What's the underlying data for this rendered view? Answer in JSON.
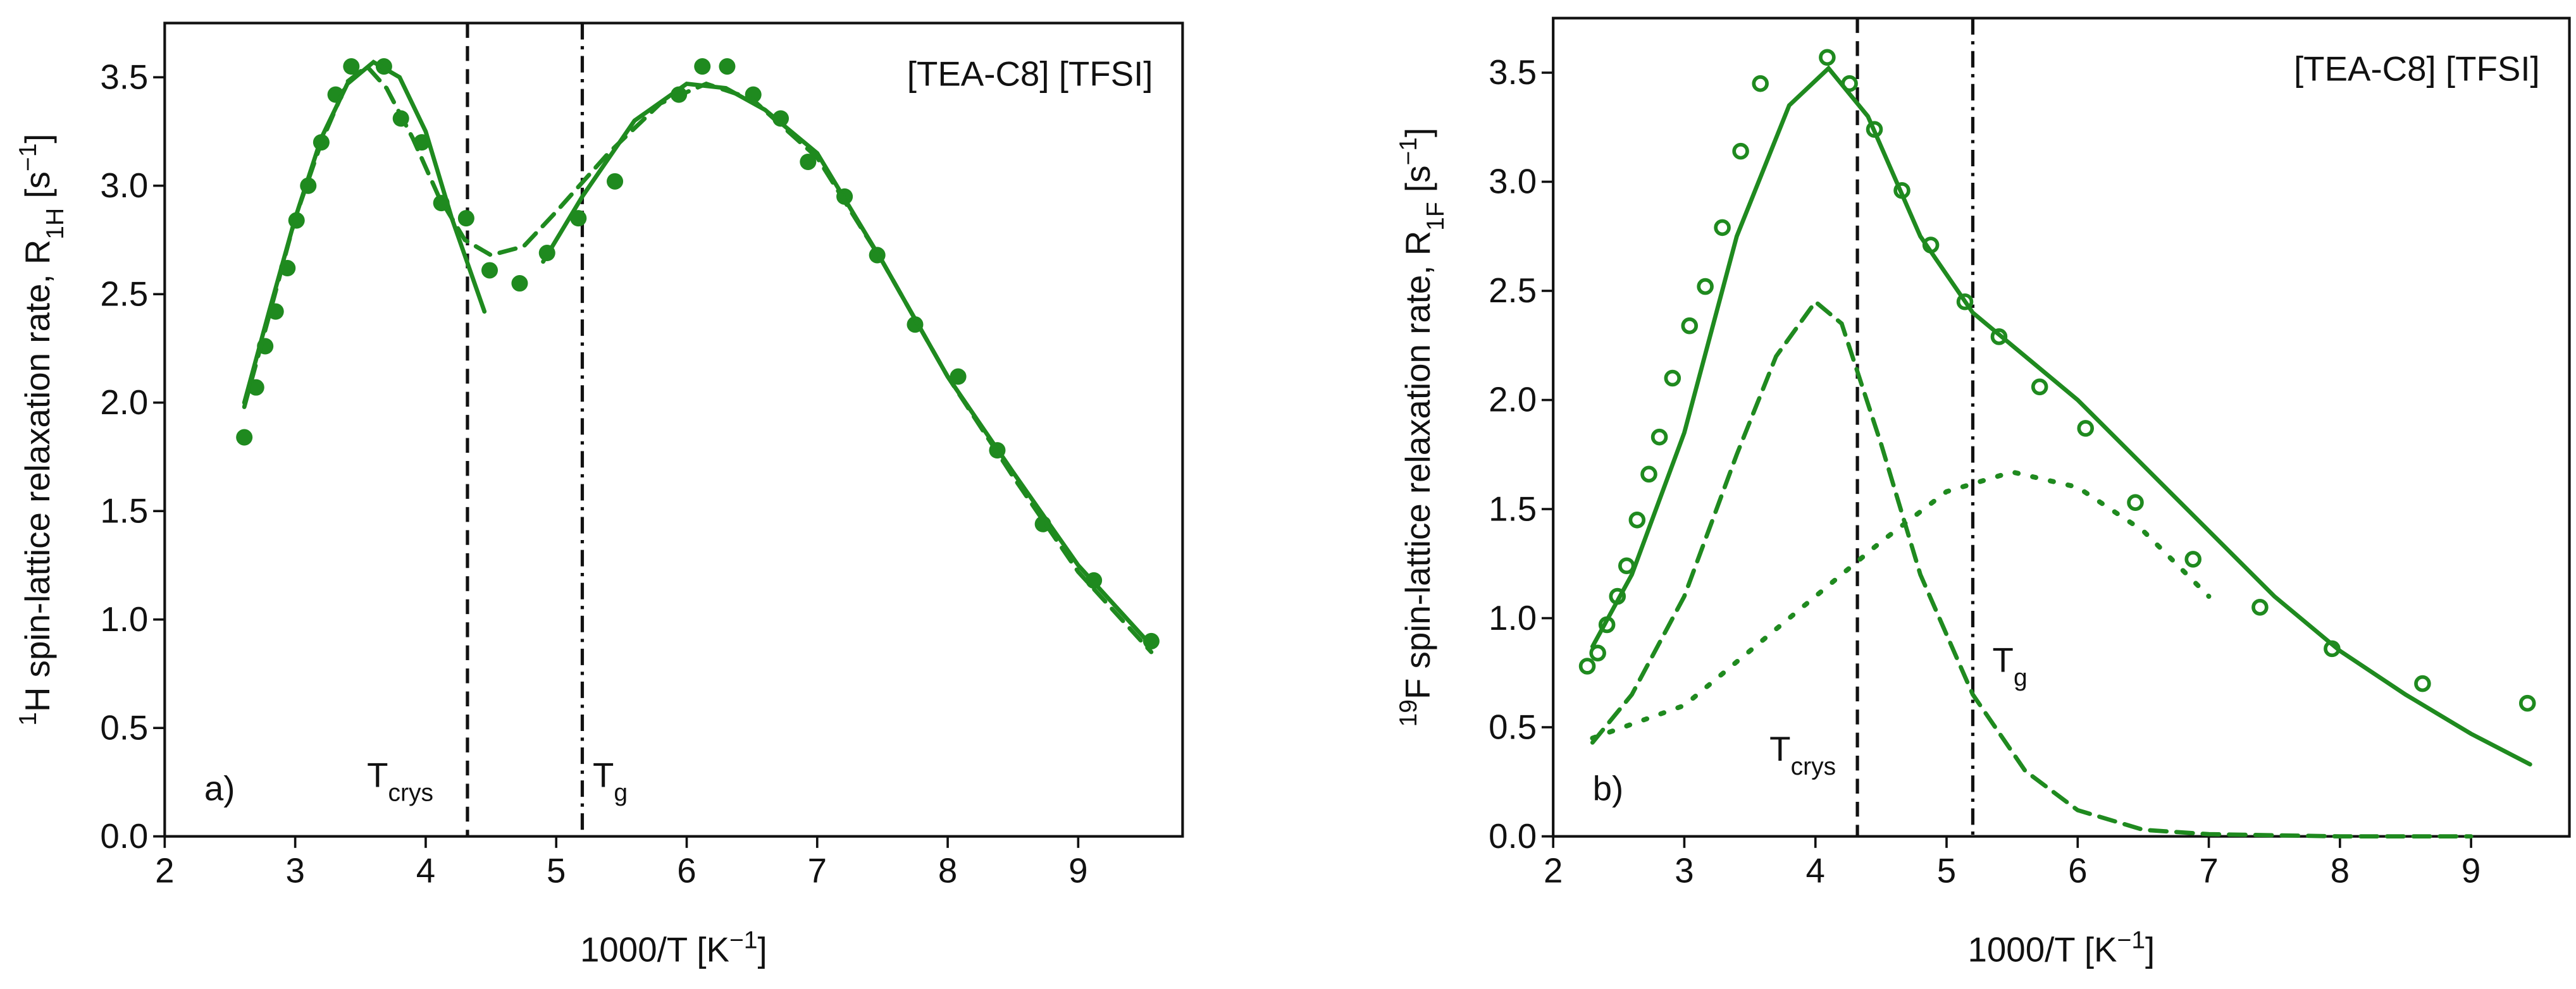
{
  "chart_data": [
    {
      "type": "scatter",
      "xlabel": [
        "1000/T [K",
        "−1",
        "]"
      ],
      "ylabel": [
        "1",
        "H spin-lattice relaxation rate, R",
        "1H",
        " [s",
        "−1",
        "]"
      ],
      "annotations": {
        "legend": "[TEA-C8] [TFSI]",
        "panel": "a)",
        "crys": [
          "T",
          "crys"
        ],
        "glass": [
          "T",
          "g"
        ]
      },
      "vlines": [
        4.32,
        5.2
      ],
      "xlim": [
        2,
        9.8
      ],
      "ylim": [
        0,
        3.75
      ],
      "xticks": [
        2,
        3,
        4,
        5,
        6,
        7,
        8,
        9
      ],
      "yticks": [
        {
          "value": 0,
          "label": "0.0"
        },
        0.5,
        {
          "value": 1,
          "label": "1.0"
        },
        1.5,
        {
          "value": 2,
          "label": "2.0"
        },
        2.5,
        {
          "value": 3,
          "label": "3.0"
        },
        3.5
      ],
      "series": [
        {
          "style": "filled",
          "color": "#1f8a1f",
          "x": [
            2.61,
            2.7,
            2.77,
            2.85,
            2.94,
            3.01,
            3.1,
            3.2,
            3.31,
            3.43,
            3.68,
            3.81,
            3.97,
            4.12,
            4.31,
            4.49,
            4.72,
            4.93,
            5.17,
            5.45,
            5.94,
            6.12,
            6.31,
            6.51,
            6.72,
            6.93,
            7.21,
            7.46,
            7.75,
            8.08,
            8.38,
            8.73,
            9.12,
            9.56
          ],
          "values": [
            1.84,
            2.07,
            2.26,
            2.42,
            2.62,
            2.84,
            3.0,
            3.2,
            3.42,
            3.55,
            3.55,
            3.31,
            3.2,
            2.92,
            2.85,
            2.61,
            2.55,
            2.69,
            2.85,
            3.02,
            3.42,
            3.55,
            3.55,
            3.42,
            3.31,
            3.11,
            2.95,
            2.68,
            2.36,
            2.12,
            1.78,
            1.44,
            1.18,
            0.9
          ]
        },
        {
          "style": "solid",
          "color": "#1f8a1f",
          "x": [
            2.61,
            2.8,
            3.0,
            3.2,
            3.4,
            3.6,
            3.8,
            4.0,
            4.2,
            4.45,
            4.7,
            4.9,
            5.2,
            5.6,
            6.0,
            6.3,
            6.6,
            7.0,
            7.5,
            8.0,
            8.5,
            9.0,
            9.56
          ],
          "values": [
            2.0,
            2.42,
            2.85,
            3.22,
            3.47,
            3.57,
            3.5,
            3.25,
            2.85,
            2.42,
            null,
            2.65,
            2.95,
            3.3,
            3.47,
            3.45,
            3.35,
            3.15,
            2.65,
            2.12,
            1.68,
            1.25,
            0.88
          ]
        },
        {
          "style": "dashed",
          "color": "#1f8a1f",
          "x": [
            2.61,
            2.8,
            3.0,
            3.2,
            3.4,
            3.55,
            3.7,
            3.9,
            4.1,
            4.3,
            4.5,
            4.75,
            5.0,
            5.4,
            5.8,
            6.15,
            6.5,
            7.0,
            7.5,
            8.0,
            8.5,
            9.0,
            9.56
          ],
          "values": [
            1.98,
            2.4,
            2.85,
            3.2,
            3.48,
            3.55,
            3.45,
            3.22,
            2.95,
            2.75,
            2.68,
            2.72,
            2.88,
            3.15,
            3.38,
            3.47,
            3.4,
            3.13,
            2.65,
            2.12,
            1.66,
            1.22,
            0.85
          ]
        }
      ]
    },
    {
      "type": "scatter",
      "xlabel": [
        "1000/T [K",
        "−1",
        "]"
      ],
      "ylabel": [
        "19",
        "F spin-lattice relaxation rate, R",
        "1F",
        " [s",
        "−1",
        "]"
      ],
      "annotations": {
        "legend": "[TEA-C8] [TFSI]",
        "panel": "b)",
        "crys": [
          "T",
          "crys"
        ],
        "glass": [
          "T",
          "g"
        ]
      },
      "vlines": [
        4.32,
        5.2
      ],
      "xlim": [
        2,
        9.75
      ],
      "ylim": [
        0,
        3.75
      ],
      "xticks": [
        2,
        3,
        4,
        5,
        6,
        7,
        8,
        9
      ],
      "yticks": [
        {
          "value": 0,
          "label": "0.0"
        },
        0.5,
        {
          "value": 1,
          "label": "1.0"
        },
        1.5,
        {
          "value": 2,
          "label": "2.0"
        },
        2.5,
        {
          "value": 3,
          "label": "3.0"
        },
        3.5
      ],
      "series": [
        {
          "style": "open",
          "color": "#1f8a1f",
          "x": [
            2.26,
            2.34,
            2.41,
            2.49,
            2.56,
            2.64,
            2.73,
            2.81,
            2.91,
            3.04,
            3.16,
            3.29,
            3.43,
            3.58,
            4.09,
            4.26,
            4.45,
            4.66,
            4.88,
            5.14,
            5.4,
            5.71,
            6.06,
            6.44,
            6.88,
            7.39,
            7.94,
            8.63,
            9.43
          ],
          "values": [
            0.78,
            0.84,
            0.97,
            1.1,
            1.24,
            1.45,
            1.66,
            1.83,
            2.1,
            2.34,
            2.52,
            2.79,
            3.14,
            3.45,
            3.57,
            3.45,
            3.24,
            2.96,
            2.71,
            2.45,
            2.29,
            2.06,
            1.87,
            1.53,
            1.27,
            1.05,
            0.86,
            0.7,
            0.61
          ]
        },
        {
          "style": "solid",
          "color": "#1f8a1f",
          "x": [
            2.3,
            2.6,
            3.0,
            3.4,
            3.8,
            4.1,
            4.4,
            4.8,
            5.2,
            5.6,
            6.0,
            6.5,
            7.0,
            7.5,
            8.0,
            8.5,
            9.0,
            9.45
          ],
          "values": [
            0.87,
            1.2,
            1.85,
            2.75,
            3.35,
            3.52,
            3.3,
            2.75,
            2.4,
            2.2,
            2.0,
            1.7,
            1.4,
            1.1,
            0.85,
            0.65,
            0.47,
            0.33
          ]
        },
        {
          "style": "dashed",
          "color": "#1f8a1f",
          "x": [
            2.3,
            2.6,
            3.0,
            3.4,
            3.7,
            4.0,
            4.2,
            4.5,
            4.8,
            5.2,
            5.6,
            6.0,
            6.5,
            7.0,
            8.0,
            9.0
          ],
          "values": [
            0.43,
            0.65,
            1.1,
            1.75,
            2.2,
            2.45,
            2.35,
            1.8,
            1.2,
            0.65,
            0.3,
            0.12,
            0.03,
            0.01,
            0,
            0
          ]
        },
        {
          "style": "dotted",
          "color": "#1f8a1f",
          "x": [
            2.3,
            3.0,
            3.5,
            4.0,
            4.5,
            5.0,
            5.5,
            6.0,
            6.5,
            7.0
          ],
          "values": [
            0.45,
            0.6,
            0.85,
            1.1,
            1.35,
            1.58,
            1.67,
            1.6,
            1.4,
            1.1
          ]
        }
      ]
    }
  ]
}
